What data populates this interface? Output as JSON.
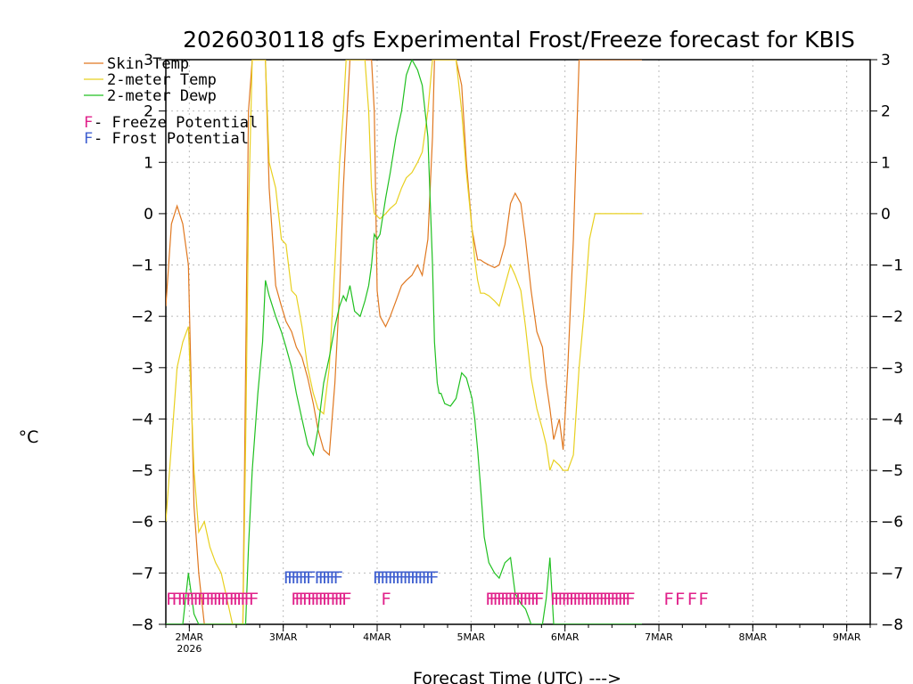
{
  "chart_data": {
    "type": "line",
    "title": "2026030118 gfs Experimental Frost/Freeze forecast for KBIS",
    "ylabel": "°C",
    "xlabel": "Forecast Time (UTC) --->",
    "ylim": [
      -8,
      3
    ],
    "xlim": [
      -0.25,
      7.25
    ],
    "yticks": [
      3,
      2,
      1,
      0,
      -1,
      -2,
      -3,
      -4,
      -5,
      -6,
      -7,
      -8
    ],
    "yticks_left_labels": [
      "3",
      "2",
      "1",
      "0",
      "−1",
      "−2",
      "−3",
      "−4",
      "−5",
      "−6",
      "−7",
      "−8"
    ],
    "yticks_right_labels": [
      "3",
      "2",
      "1",
      "0",
      "−1",
      "−2",
      "−3",
      "−4",
      "−5",
      "−6",
      "−7",
      "−8"
    ],
    "xticks": [
      {
        "day": 0,
        "label": "2MAR",
        "sub": "2026"
      },
      {
        "day": 1,
        "label": "3MAR",
        "sub": ""
      },
      {
        "day": 2,
        "label": "4MAR",
        "sub": ""
      },
      {
        "day": 3,
        "label": "5MAR",
        "sub": ""
      },
      {
        "day": 4,
        "label": "6MAR",
        "sub": ""
      },
      {
        "day": 5,
        "label": "7MAR",
        "sub": ""
      },
      {
        "day": 6,
        "label": "8MAR",
        "sub": ""
      },
      {
        "day": 7,
        "label": "9MAR",
        "sub": ""
      }
    ],
    "grid": true,
    "legend": {
      "placement": "top-left",
      "entries": [
        {
          "label": "Skin Temp",
          "color": "#e07820"
        },
        {
          "label": "2-meter Temp",
          "color": "#e8d020"
        },
        {
          "label": "2-meter Dewp",
          "color": "#20c020"
        }
      ],
      "flags": [
        {
          "letter": "F",
          "text": " - Freeze Potential",
          "color": "#e0208a"
        },
        {
          "letter": "F",
          "text": " - Frost Potential",
          "color": "#4060d0"
        }
      ]
    },
    "series": [
      {
        "name": "Skin Temp",
        "color": "#e07820",
        "x": [
          -0.25,
          -0.19,
          -0.13,
          -0.07,
          -0.01,
          0.05,
          0.1,
          0.16,
          0.22,
          0.28,
          0.34,
          0.4,
          0.46,
          0.52,
          0.57,
          0.6,
          0.63,
          0.67,
          0.73,
          0.78,
          0.81,
          0.85,
          0.92,
          0.98,
          1.03,
          1.09,
          1.14,
          1.2,
          1.26,
          1.32,
          1.37,
          1.43,
          1.49,
          1.55,
          1.6,
          1.64,
          1.67,
          1.71,
          1.76,
          1.82,
          1.87,
          1.91,
          1.94,
          1.97,
          2.0,
          2.03,
          2.09,
          2.14,
          2.2,
          2.26,
          2.31,
          2.37,
          2.43,
          2.48,
          2.54,
          2.59,
          2.61,
          2.64,
          2.66,
          2.68,
          2.72,
          2.78,
          2.84,
          2.9,
          2.95,
          3.01,
          3.04,
          3.07,
          3.1,
          3.14,
          3.19,
          3.25,
          3.3,
          3.36,
          3.42,
          3.47,
          3.53,
          3.58,
          3.64,
          3.7,
          3.76,
          3.8,
          3.84,
          3.88,
          3.94,
          3.98,
          4.03,
          4.09,
          4.15,
          4.2,
          4.26,
          4.32,
          4.38,
          4.43,
          4.49,
          4.55,
          4.61,
          4.65,
          4.69,
          4.72,
          4.75,
          4.78,
          4.82
        ],
        "y": [
          -1.8,
          -0.2,
          0.15,
          -0.2,
          -1.0,
          -5.7,
          -7.0,
          -8.0,
          -8.0,
          -8.0,
          -8.0,
          -8.0,
          -8.0,
          -8.0,
          -8.0,
          -3.0,
          2.0,
          3.0,
          3.0,
          3.0,
          3.0,
          0.5,
          -1.4,
          -1.8,
          -2.1,
          -2.3,
          -2.6,
          -2.8,
          -3.2,
          -3.7,
          -4.2,
          -4.6,
          -4.7,
          -3.3,
          -1.5,
          0.5,
          1.6,
          3.0,
          3.0,
          3.0,
          3.0,
          3.0,
          3.0,
          2.0,
          -1.5,
          -2.0,
          -2.2,
          -2.0,
          -1.7,
          -1.4,
          -1.3,
          -1.2,
          -1.0,
          -1.2,
          -0.5,
          1.5,
          3.0,
          3.0,
          3.0,
          3.0,
          3.0,
          3.0,
          3.0,
          2.5,
          1.0,
          -0.3,
          -0.6,
          -0.9,
          -0.9,
          -0.95,
          -1.0,
          -1.05,
          -1.0,
          -0.6,
          0.2,
          0.4,
          0.2,
          -0.5,
          -1.5,
          -2.3,
          -2.6,
          -3.3,
          -3.8,
          -4.4,
          -4.0,
          -4.6,
          -3.0,
          -0.5,
          3.0,
          3.0,
          3.0,
          3.0,
          3.0,
          3.0,
          3.0,
          3.0,
          3.0,
          3.0,
          3.0,
          3.0,
          3.0,
          3.0,
          3.0
        ]
      },
      {
        "name": "2-meter Temp",
        "color": "#e8d020",
        "x": [
          -0.25,
          -0.19,
          -0.13,
          -0.07,
          -0.01,
          0.05,
          0.1,
          0.16,
          0.22,
          0.28,
          0.34,
          0.4,
          0.46,
          0.52,
          0.57,
          0.6,
          0.63,
          0.67,
          0.73,
          0.78,
          0.81,
          0.85,
          0.92,
          0.98,
          1.03,
          1.09,
          1.14,
          1.2,
          1.26,
          1.32,
          1.37,
          1.43,
          1.49,
          1.55,
          1.6,
          1.64,
          1.67,
          1.71,
          1.76,
          1.82,
          1.87,
          1.91,
          1.94,
          1.97,
          2.0,
          2.03,
          2.09,
          2.14,
          2.2,
          2.26,
          2.31,
          2.37,
          2.43,
          2.48,
          2.54,
          2.59,
          2.61,
          2.64,
          2.66,
          2.68,
          2.72,
          2.78,
          2.84,
          2.9,
          2.95,
          3.01,
          3.04,
          3.07,
          3.1,
          3.14,
          3.19,
          3.25,
          3.3,
          3.36,
          3.42,
          3.47,
          3.53,
          3.58,
          3.64,
          3.7,
          3.76,
          3.8,
          3.84,
          3.88,
          3.94,
          3.98,
          4.03,
          4.09,
          4.15,
          4.2,
          4.26,
          4.32,
          4.38,
          4.43,
          4.49,
          4.55,
          4.61,
          4.65,
          4.69,
          4.72,
          4.75,
          4.78,
          4.82
        ],
        "y": [
          -6.0,
          -4.5,
          -3.0,
          -2.5,
          -2.2,
          -5.0,
          -6.2,
          -6.0,
          -6.5,
          -6.8,
          -7.0,
          -7.5,
          -8.0,
          -8.0,
          -8.0,
          -4.5,
          0.0,
          3.0,
          3.0,
          3.0,
          3.0,
          1.0,
          0.5,
          -0.5,
          -0.6,
          -1.5,
          -1.6,
          -2.2,
          -3.0,
          -3.5,
          -3.8,
          -3.9,
          -3.0,
          -1.0,
          1.0,
          2.0,
          3.0,
          3.0,
          3.0,
          3.0,
          3.0,
          2.0,
          0.5,
          0.0,
          -0.05,
          -0.1,
          0.0,
          0.1,
          0.2,
          0.5,
          0.7,
          0.8,
          1.0,
          1.2,
          2.0,
          3.0,
          3.0,
          3.0,
          3.0,
          3.0,
          3.0,
          3.0,
          3.0,
          2.0,
          0.8,
          -0.3,
          -0.9,
          -1.3,
          -1.55,
          -1.55,
          -1.6,
          -1.7,
          -1.8,
          -1.4,
          -1.0,
          -1.2,
          -1.5,
          -2.2,
          -3.2,
          -3.8,
          -4.2,
          -4.5,
          -5.0,
          -4.8,
          -4.9,
          -5.0,
          -5.0,
          -4.7,
          -3.0,
          -2.0,
          -0.5,
          0.0,
          0.0,
          0.0,
          0.0,
          0.0,
          0.0,
          0.0,
          0.0,
          0.0,
          0.0,
          0.0,
          0.0
        ]
      },
      {
        "name": "2-meter Dewp",
        "color": "#20c020",
        "x": [
          -0.25,
          -0.19,
          -0.13,
          -0.07,
          -0.01,
          0.05,
          0.1,
          0.16,
          0.22,
          0.28,
          0.34,
          0.4,
          0.46,
          0.52,
          0.57,
          0.6,
          0.63,
          0.67,
          0.73,
          0.78,
          0.81,
          0.85,
          0.92,
          0.98,
          1.03,
          1.09,
          1.14,
          1.2,
          1.26,
          1.32,
          1.37,
          1.43,
          1.49,
          1.55,
          1.6,
          1.64,
          1.67,
          1.71,
          1.76,
          1.82,
          1.87,
          1.91,
          1.94,
          1.97,
          2.0,
          2.03,
          2.09,
          2.14,
          2.2,
          2.26,
          2.31,
          2.37,
          2.43,
          2.48,
          2.54,
          2.59,
          2.61,
          2.64,
          2.66,
          2.68,
          2.72,
          2.78,
          2.84,
          2.9,
          2.95,
          3.01,
          3.04,
          3.07,
          3.1,
          3.14,
          3.19,
          3.25,
          3.3,
          3.36,
          3.42,
          3.47,
          3.53,
          3.58,
          3.64,
          3.7,
          3.76,
          3.8,
          3.84,
          3.88,
          3.94,
          3.98,
          4.03,
          4.09,
          4.15,
          4.2,
          4.26,
          4.32,
          4.38,
          4.43,
          4.49,
          4.55,
          4.61,
          4.65,
          4.69,
          4.72,
          4.75,
          4.78,
          4.82
        ],
        "y": [
          -8.0,
          -8.0,
          -8.0,
          -8.0,
          -7.0,
          -7.8,
          -8.0,
          -8.0,
          -8.0,
          -8.0,
          -8.0,
          -8.0,
          -8.0,
          -8.0,
          -8.0,
          -8.0,
          -6.5,
          -5.0,
          -3.5,
          -2.5,
          -1.3,
          -1.6,
          -2.0,
          -2.3,
          -2.6,
          -3.0,
          -3.5,
          -4.0,
          -4.5,
          -4.7,
          -4.2,
          -3.3,
          -2.8,
          -2.2,
          -1.8,
          -1.6,
          -1.7,
          -1.4,
          -1.9,
          -2.0,
          -1.7,
          -1.4,
          -1.0,
          -0.4,
          -0.5,
          -0.4,
          0.3,
          0.8,
          1.5,
          2.0,
          2.7,
          3.0,
          2.8,
          2.5,
          1.5,
          -1.0,
          -2.5,
          -3.3,
          -3.5,
          -3.5,
          -3.7,
          -3.75,
          -3.6,
          -3.1,
          -3.2,
          -3.6,
          -4.0,
          -4.6,
          -5.3,
          -6.3,
          -6.8,
          -7.0,
          -7.1,
          -6.8,
          -6.7,
          -7.4,
          -7.6,
          -7.7,
          -8.0,
          -8.0,
          -8.0,
          -7.5,
          -6.7,
          -8.0,
          -8.0,
          -8.0,
          -8.0,
          -8.0,
          -8.0,
          -8.0,
          -8.0,
          -8.0,
          -8.0,
          -8.0,
          -8.0,
          -8.0,
          -8.0,
          -8.0,
          -8.0,
          -8.0,
          -8.0,
          -8.0,
          -8.0
        ]
      }
    ],
    "freeze_flags": {
      "color": "#e0208a",
      "label": "F",
      "y": -7.5,
      "days": [
        -0.25,
        -0.19,
        -0.13,
        -0.09,
        -0.04,
        0.0,
        0.04,
        0.08,
        0.12,
        0.17,
        0.21,
        0.25,
        0.29,
        0.33,
        0.37,
        0.42,
        0.46,
        0.5,
        0.54,
        0.58,
        0.63,
        1.08,
        1.12,
        1.16,
        1.2,
        1.25,
        1.29,
        1.33,
        1.37,
        1.41,
        1.45,
        1.5,
        1.54,
        1.58,
        1.62,
        2.04,
        3.15,
        3.19,
        3.23,
        3.27,
        3.31,
        3.35,
        3.39,
        3.43,
        3.47,
        3.51,
        3.55,
        3.59,
        3.63,
        3.67,
        3.84,
        3.88,
        3.92,
        3.96,
        4.0,
        4.04,
        4.08,
        4.12,
        4.16,
        4.2,
        4.24,
        4.28,
        4.32,
        4.36,
        4.4,
        4.44,
        4.48,
        4.52,
        4.56,
        4.6,
        4.64,
        5.05,
        5.17,
        5.3,
        5.42
      ]
    },
    "frost_flags": {
      "color": "#4060d0",
      "label": "F",
      "y": -7.08,
      "days": [
        1.0,
        1.04,
        1.08,
        1.12,
        1.16,
        1.2,
        1.24,
        1.33,
        1.37,
        1.41,
        1.45,
        1.49,
        1.53,
        1.95,
        1.99,
        2.03,
        2.07,
        2.11,
        2.15,
        2.19,
        2.23,
        2.27,
        2.31,
        2.35,
        2.39,
        2.43,
        2.47,
        2.51,
        2.55
      ]
    }
  }
}
